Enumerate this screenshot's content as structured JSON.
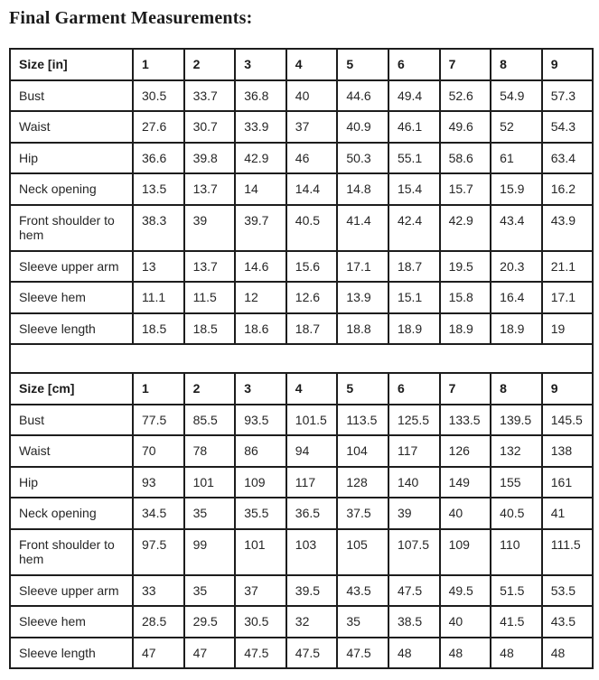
{
  "title": "Final Garment Measurements:",
  "table": {
    "sections": [
      {
        "unit": "inches",
        "header": [
          "Size [in]",
          "1",
          "2",
          "3",
          "4",
          "5",
          "6",
          "7",
          "8",
          "9"
        ],
        "rows": [
          {
            "label": "Bust",
            "values": [
              "30.5",
              "33.7",
              "36.8",
              "40",
              "44.6",
              "49.4",
              "52.6",
              "54.9",
              "57.3"
            ]
          },
          {
            "label": "Waist",
            "values": [
              "27.6",
              "30.7",
              "33.9",
              "37",
              "40.9",
              "46.1",
              "49.6",
              "52",
              "54.3"
            ]
          },
          {
            "label": "Hip",
            "values": [
              "36.6",
              "39.8",
              "42.9",
              "46",
              "50.3",
              "55.1",
              "58.6",
              "61",
              "63.4"
            ]
          },
          {
            "label": "Neck opening",
            "values": [
              "13.5",
              "13.7",
              "14",
              "14.4",
              "14.8",
              "15.4",
              "15.7",
              "15.9",
              "16.2"
            ]
          },
          {
            "label": "Front shoulder to hem",
            "values": [
              "38.3",
              "39",
              "39.7",
              "40.5",
              "41.4",
              "42.4",
              "42.9",
              "43.4",
              "43.9"
            ]
          },
          {
            "label": "Sleeve upper arm",
            "values": [
              "13",
              "13.7",
              "14.6",
              "15.6",
              "17.1",
              "18.7",
              "19.5",
              "20.3",
              "21.1"
            ]
          },
          {
            "label": "Sleeve hem",
            "values": [
              "11.1",
              "11.5",
              "12",
              "12.6",
              "13.9",
              "15.1",
              "15.8",
              "16.4",
              "17.1"
            ]
          },
          {
            "label": "Sleeve length",
            "values": [
              "18.5",
              "18.5",
              "18.6",
              "18.7",
              "18.8",
              "18.9",
              "18.9",
              "18.9",
              "19"
            ]
          }
        ]
      },
      {
        "unit": "centimeters",
        "header": [
          "Size [cm]",
          "1",
          "2",
          "3",
          "4",
          "5",
          "6",
          "7",
          "8",
          "9"
        ],
        "rows": [
          {
            "label": "Bust",
            "values": [
              "77.5",
              "85.5",
              "93.5",
              "101.5",
              "113.5",
              "125.5",
              "133.5",
              "139.5",
              "145.5"
            ]
          },
          {
            "label": "Waist",
            "values": [
              "70",
              "78",
              "86",
              "94",
              "104",
              "117",
              "126",
              "132",
              "138"
            ]
          },
          {
            "label": "Hip",
            "values": [
              "93",
              "101",
              "109",
              "117",
              "128",
              "140",
              "149",
              "155",
              "161"
            ]
          },
          {
            "label": "Neck opening",
            "values": [
              "34.5",
              "35",
              "35.5",
              "36.5",
              "37.5",
              "39",
              "40",
              "40.5",
              "41"
            ]
          },
          {
            "label": "Front shoulder to hem",
            "values": [
              "97.5",
              "99",
              "101",
              "103",
              "105",
              "107.5",
              "109",
              "110",
              "111.5"
            ]
          },
          {
            "label": "Sleeve upper arm",
            "values": [
              "33",
              "35",
              "37",
              "39.5",
              "43.5",
              "47.5",
              "49.5",
              "51.5",
              "53.5"
            ]
          },
          {
            "label": "Sleeve hem",
            "values": [
              "28.5",
              "29.5",
              "30.5",
              "32",
              "35",
              "38.5",
              "40",
              "41.5",
              "43.5"
            ]
          },
          {
            "label": "Sleeve length",
            "values": [
              "47",
              "47",
              "47.5",
              "47.5",
              "47.5",
              "48",
              "48",
              "48",
              "48"
            ]
          }
        ]
      }
    ]
  }
}
